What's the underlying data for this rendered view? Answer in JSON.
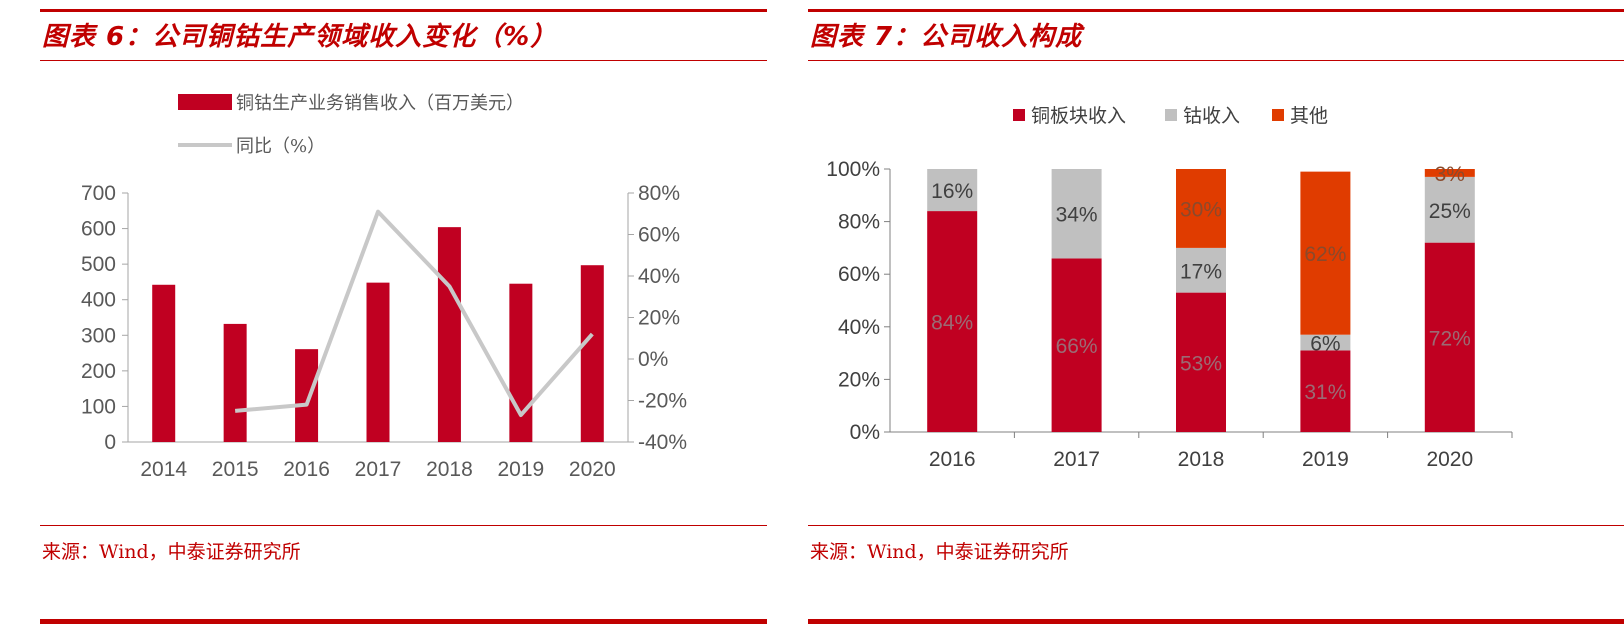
{
  "left_panel": {
    "title": "图表 6：公司铜钴生产领域收入变化（%）",
    "source": "来源：Wind，中泰证券研究所"
  },
  "right_panel": {
    "title": "图表 7：公司收入构成",
    "source": "来源：Wind，中泰证券研究所"
  },
  "colors": {
    "accent": "#c00000",
    "bar_red": "#c00021",
    "line_gray": "#c8c8c8",
    "gray_segment": "#c0c0c0",
    "orange_segment": "#e03c00"
  },
  "chart_data": [
    {
      "type": "bar",
      "title": "",
      "categories": [
        "2014",
        "2015",
        "2016",
        "2017",
        "2018",
        "2019",
        "2020"
      ],
      "ylim": [
        0,
        700
      ],
      "y_ticks": [
        "0",
        "100",
        "200",
        "300",
        "400",
        "500",
        "600",
        "700"
      ],
      "y2lim": [
        -40,
        80
      ],
      "y2_ticks": [
        "-40%",
        "-20%",
        "0%",
        "20%",
        "40%",
        "60%",
        "80%"
      ],
      "legend_position": "top-left",
      "grid": false,
      "series": [
        {
          "name": "铜钴生产业务销售收入（百万美元）",
          "type": "bar",
          "axis": "left",
          "values": [
            442,
            332,
            261,
            448,
            604,
            445,
            497
          ]
        },
        {
          "name": "同比（%）",
          "type": "line",
          "axis": "right",
          "values": [
            null,
            -25,
            -22,
            71,
            35,
            -27,
            12
          ]
        }
      ]
    },
    {
      "type": "bar",
      "stacked": true,
      "title": "",
      "categories": [
        "2016",
        "2017",
        "2018",
        "2019",
        "2020"
      ],
      "ylim": [
        0,
        100
      ],
      "y_ticks": [
        "0%",
        "20%",
        "40%",
        "60%",
        "80%",
        "100%"
      ],
      "legend_position": "top",
      "grid": false,
      "series": [
        {
          "name": "铜板块收入",
          "values": [
            84,
            66,
            53,
            31,
            72
          ],
          "labels": [
            "84%",
            "66%",
            "53%",
            "31%",
            "72%"
          ]
        },
        {
          "name": "钴收入",
          "values": [
            16,
            34,
            17,
            6,
            25
          ],
          "labels": [
            "16%",
            "34%",
            "17%",
            "6%",
            "25%"
          ]
        },
        {
          "name": "其他",
          "values": [
            0,
            0,
            30,
            62,
            3
          ],
          "labels": [
            "",
            "",
            "30%",
            "62%",
            "3%"
          ]
        }
      ]
    }
  ]
}
